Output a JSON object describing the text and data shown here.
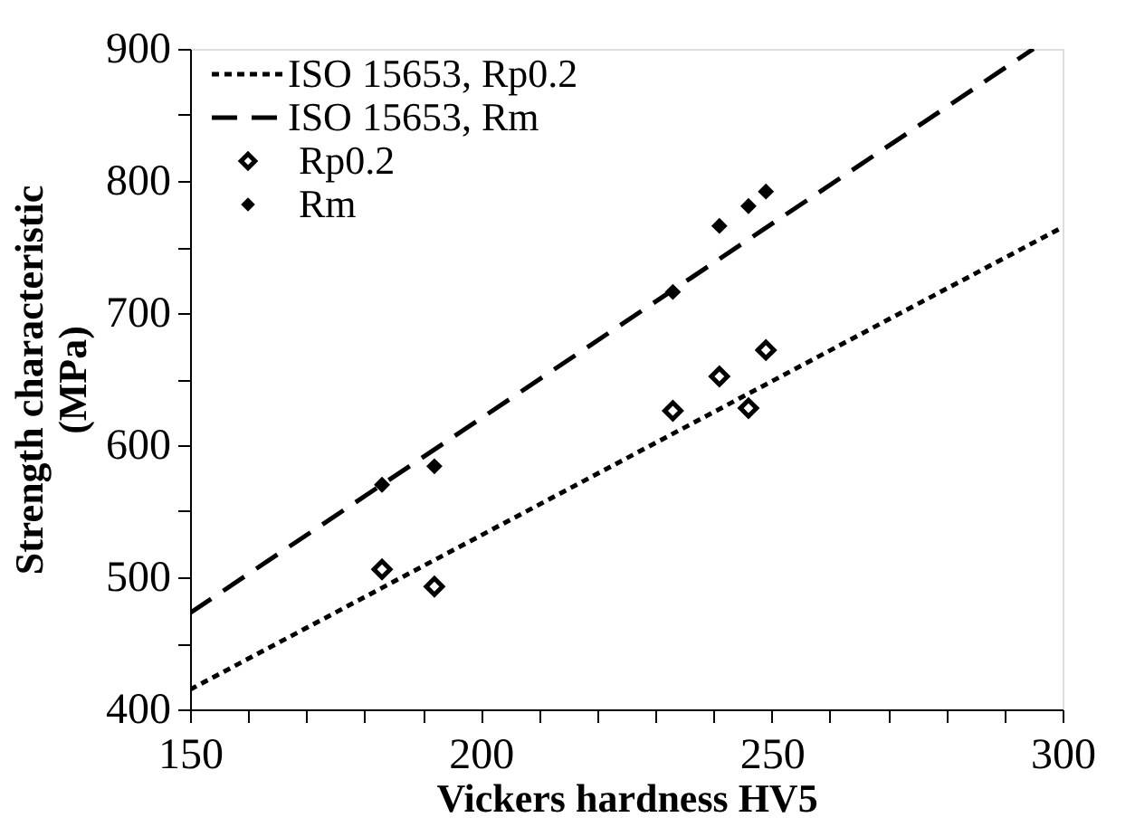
{
  "chart_data": {
    "type": "scatter",
    "xlabel": "Vickers hardness HV5",
    "ylabel": "Strength characteristic\n(MPa)",
    "xlim": [
      150,
      300
    ],
    "ylim": [
      400,
      900
    ],
    "xticks": [
      150,
      {
        "value": 160,
        "label": null
      },
      {
        "value": 170,
        "label": null
      },
      {
        "value": 180,
        "label": null
      },
      {
        "value": 190,
        "label": null
      },
      200,
      {
        "value": 210,
        "label": null
      },
      {
        "value": 220,
        "label": null
      },
      {
        "value": 230,
        "label": null
      },
      {
        "value": 240,
        "label": null
      },
      250,
      {
        "value": 260,
        "label": null
      },
      {
        "value": 270,
        "label": null
      },
      {
        "value": 280,
        "label": null
      },
      {
        "value": 290,
        "label": null
      },
      300
    ],
    "yticks": [
      400,
      {
        "value": 450,
        "label": null
      },
      500,
      {
        "value": 550,
        "label": null
      },
      600,
      {
        "value": 650,
        "label": null
      },
      700,
      {
        "value": 750,
        "label": null
      },
      800,
      {
        "value": 850,
        "label": null
      },
      900
    ],
    "grid": false,
    "legend": "top left",
    "series": [
      {
        "name": "ISO 15653, Rp0.2",
        "type": "line",
        "line_style": "dotted",
        "color": "#000000",
        "x": [
          150,
          300
        ],
        "values": [
          415,
          765
        ]
      },
      {
        "name": "ISO 15653, Rm",
        "type": "line",
        "line_style": "dashed",
        "color": "#000000",
        "x": [
          150,
          295
        ],
        "values": [
          473,
          900
        ]
      },
      {
        "name": "Rp0.2",
        "marker": "diamond",
        "color": "#000000",
        "x": [
          183,
          192,
          233,
          241,
          246,
          249
        ],
        "values": [
          506,
          493,
          626,
          652,
          628,
          672
        ]
      },
      {
        "name": "Rm",
        "marker": "diamond",
        "color": "#000000",
        "x": [
          183,
          192,
          233,
          241,
          246,
          249
        ],
        "values": [
          570,
          584,
          716,
          766,
          781,
          792
        ]
      }
    ]
  }
}
